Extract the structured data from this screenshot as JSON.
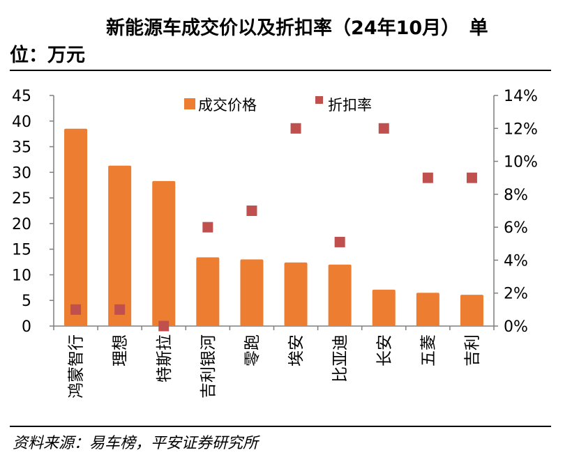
{
  "title": {
    "line1": "新能源车成交价以及折扣率（24年10月）　单",
    "line2": "位：万元"
  },
  "source": "资料来源：易车榜，平安证券研究所",
  "colors": {
    "bar": "#ED7D31",
    "marker": "#C0504D",
    "axis": "#7F7F7F"
  },
  "chart_data": {
    "type": "bar",
    "categories": [
      "鸿蒙智行",
      "理想",
      "特斯拉",
      "吉利银河",
      "零跑",
      "埃安",
      "比亚迪",
      "长安",
      "五菱",
      "吉利"
    ],
    "series": [
      {
        "name": "成交价格",
        "type": "bar",
        "axis": "left",
        "values": [
          38.5,
          31.3,
          28.3,
          13.4,
          13.0,
          12.4,
          12.0,
          7.1,
          6.5,
          6.1
        ]
      },
      {
        "name": "折扣率",
        "type": "scatter",
        "axis": "right",
        "values": [
          1,
          1,
          0,
          6,
          7,
          12,
          5.1,
          12,
          9,
          9
        ]
      }
    ],
    "y_left": {
      "ylim": [
        0,
        45
      ],
      "ticks": [
        "0",
        "5",
        "10",
        "15",
        "20",
        "25",
        "30",
        "35",
        "40",
        "45"
      ]
    },
    "y_right": {
      "ylim": [
        0,
        14
      ],
      "ticks": [
        "0%",
        "2%",
        "4%",
        "6%",
        "8%",
        "10%",
        "12%",
        "14%"
      ]
    },
    "legend": {
      "placement": "top-center"
    },
    "grid": false
  }
}
